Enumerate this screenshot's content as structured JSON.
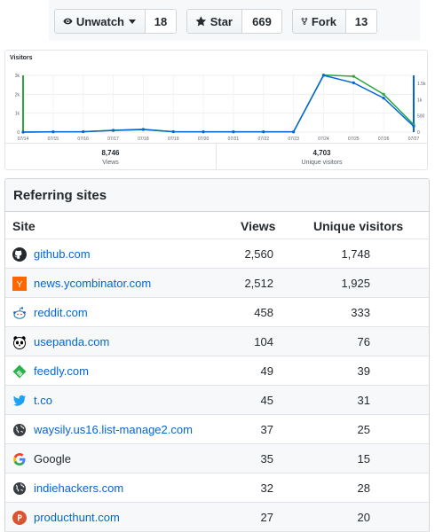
{
  "repo_actions": {
    "watch": {
      "label": "Unwatch",
      "count": "18"
    },
    "star": {
      "label": "Star",
      "count": "669"
    },
    "fork": {
      "label": "Fork",
      "count": "13"
    }
  },
  "visitors": {
    "title": "Visitors",
    "total_views": "8,746",
    "total_views_label": "Views",
    "unique_visitors": "4,703",
    "unique_visitors_label": "Unique visitors"
  },
  "chart_data": {
    "type": "line",
    "title": "Visitors",
    "x": [
      "07/14",
      "07/15",
      "07/16",
      "07/17",
      "07/18",
      "07/19",
      "07/20",
      "07/21",
      "07/22",
      "07/23",
      "07/24",
      "07/25",
      "07/26",
      "07/27"
    ],
    "y_left_ticks": [
      "0",
      "1k",
      "2k",
      "3k"
    ],
    "y_right_ticks": [
      "0",
      "500",
      "1k",
      "1.5k"
    ],
    "ylim_left": [
      0,
      3000
    ],
    "ylim_right": [
      0,
      1750
    ],
    "series": [
      {
        "name": "Views",
        "color": "#28a745",
        "axis": "left",
        "values": [
          0,
          10,
          20,
          100,
          150,
          20,
          10,
          10,
          10,
          10,
          3020,
          2950,
          2000,
          400
        ]
      },
      {
        "name": "Unique visitors",
        "color": "#0366d6",
        "axis": "right",
        "values": [
          0,
          10,
          15,
          50,
          80,
          15,
          10,
          10,
          10,
          10,
          1750,
          1520,
          1050,
          180
        ]
      }
    ],
    "grid": true,
    "legend": "none"
  },
  "referring": {
    "title": "Referring sites",
    "columns": {
      "site": "Site",
      "views": "Views",
      "unique": "Unique visitors"
    },
    "rows": [
      {
        "site": "github.com",
        "views": "2,560",
        "unique": "1,748",
        "icon": "github-icon",
        "link": true
      },
      {
        "site": "news.ycombinator.com",
        "views": "2,512",
        "unique": "1,925",
        "icon": "ycombinator-icon",
        "link": true
      },
      {
        "site": "reddit.com",
        "views": "458",
        "unique": "333",
        "icon": "reddit-icon",
        "link": true
      },
      {
        "site": "usepanda.com",
        "views": "104",
        "unique": "76",
        "icon": "panda-icon",
        "link": true
      },
      {
        "site": "feedly.com",
        "views": "49",
        "unique": "39",
        "icon": "feedly-icon",
        "link": true
      },
      {
        "site": "t.co",
        "views": "45",
        "unique": "31",
        "icon": "twitter-icon",
        "link": true
      },
      {
        "site": "waysily.us16.list-manage2.com",
        "views": "37",
        "unique": "25",
        "icon": "globe-icon",
        "link": true
      },
      {
        "site": "Google",
        "views": "35",
        "unique": "15",
        "icon": "google-icon",
        "link": false
      },
      {
        "site": "indiehackers.com",
        "views": "32",
        "unique": "28",
        "icon": "globe-icon",
        "link": true
      },
      {
        "site": "producthunt.com",
        "views": "27",
        "unique": "20",
        "icon": "producthunt-icon",
        "link": true
      }
    ]
  }
}
